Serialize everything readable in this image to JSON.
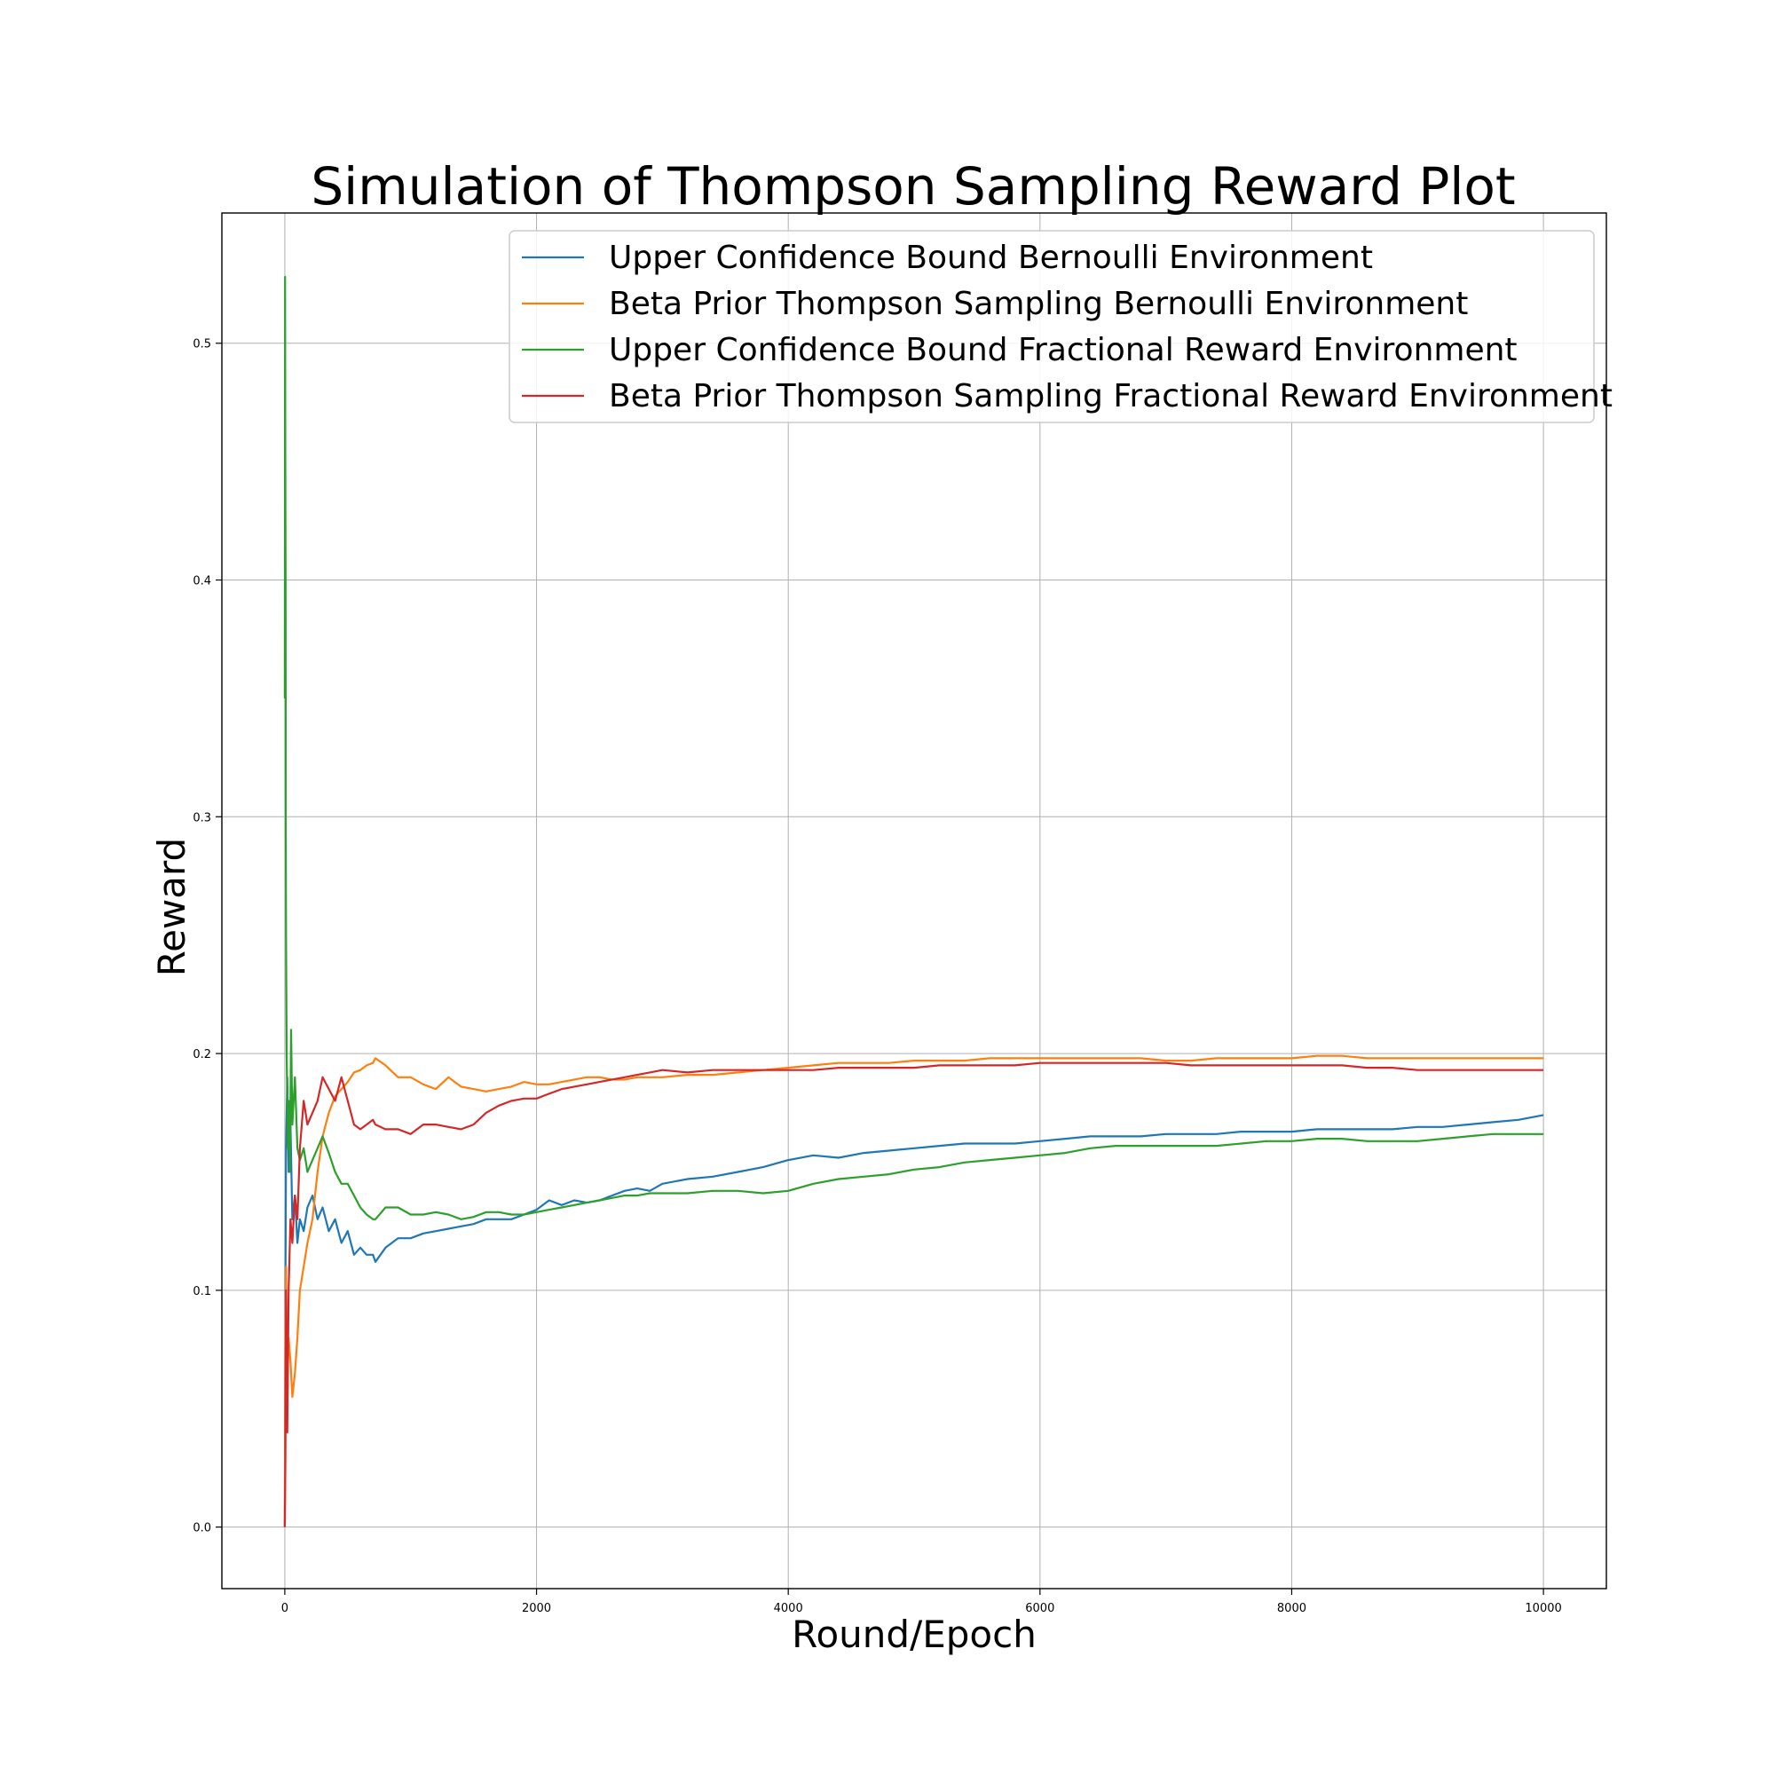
{
  "chart_data": {
    "type": "line",
    "title": "Simulation of Thompson Sampling Reward Plot",
    "xlabel": "Round/Epoch",
    "ylabel": "Reward",
    "xlim": [
      -500,
      10500
    ],
    "ylim": [
      -0.026,
      0.555
    ],
    "xticks": [
      0,
      2000,
      4000,
      6000,
      8000,
      10000
    ],
    "yticks": [
      0.0,
      0.1,
      0.2,
      0.3,
      0.4,
      0.5
    ],
    "xtick_labels": [
      "0",
      "2000",
      "4000",
      "6000",
      "8000",
      "10000"
    ],
    "ytick_labels": [
      "0.0",
      "0.1",
      "0.2",
      "0.3",
      "0.4",
      "0.5"
    ],
    "grid": true,
    "legend_position": "top-right",
    "series": [
      {
        "name": "Upper Confidence Bound Bernoulli Environment",
        "color": "#1f77b4",
        "x": [
          0,
          5,
          10,
          20,
          30,
          45,
          60,
          80,
          100,
          120,
          150,
          180,
          220,
          260,
          300,
          350,
          400,
          450,
          500,
          550,
          600,
          650,
          700,
          720,
          800,
          900,
          1000,
          1100,
          1200,
          1300,
          1400,
          1500,
          1600,
          1700,
          1800,
          1900,
          2000,
          2100,
          2200,
          2300,
          2400,
          2500,
          2600,
          2700,
          2800,
          2900,
          3000,
          3200,
          3400,
          3600,
          3800,
          4000,
          4200,
          4400,
          4600,
          4800,
          5000,
          5200,
          5400,
          5600,
          5800,
          6000,
          6200,
          6400,
          6600,
          6800,
          7000,
          7200,
          7400,
          7600,
          7800,
          8000,
          8200,
          8400,
          8600,
          8800,
          9000,
          9200,
          9400,
          9600,
          9800,
          10000
        ],
        "y": [
          0.0,
          0.1,
          0.16,
          0.19,
          0.15,
          0.17,
          0.13,
          0.14,
          0.12,
          0.13,
          0.125,
          0.135,
          0.14,
          0.13,
          0.135,
          0.125,
          0.13,
          0.12,
          0.125,
          0.115,
          0.118,
          0.115,
          0.115,
          0.112,
          0.118,
          0.122,
          0.122,
          0.124,
          0.125,
          0.126,
          0.127,
          0.128,
          0.13,
          0.13,
          0.13,
          0.132,
          0.134,
          0.138,
          0.136,
          0.138,
          0.137,
          0.138,
          0.14,
          0.142,
          0.143,
          0.142,
          0.145,
          0.147,
          0.148,
          0.15,
          0.152,
          0.155,
          0.157,
          0.156,
          0.158,
          0.159,
          0.16,
          0.161,
          0.162,
          0.162,
          0.162,
          0.163,
          0.164,
          0.165,
          0.165,
          0.165,
          0.166,
          0.166,
          0.166,
          0.167,
          0.167,
          0.167,
          0.168,
          0.168,
          0.168,
          0.168,
          0.169,
          0.169,
          0.17,
          0.171,
          0.172,
          0.174
        ]
      },
      {
        "name": "Beta Prior Thompson Sampling Bernoulli Environment",
        "color": "#ff7f0e",
        "x": [
          0,
          5,
          10,
          20,
          30,
          45,
          60,
          80,
          100,
          120,
          150,
          180,
          220,
          260,
          300,
          350,
          400,
          450,
          500,
          550,
          600,
          650,
          700,
          720,
          800,
          900,
          1000,
          1100,
          1200,
          1300,
          1400,
          1500,
          1600,
          1700,
          1800,
          1900,
          2000,
          2100,
          2200,
          2300,
          2400,
          2500,
          2600,
          2700,
          2800,
          2900,
          3000,
          3200,
          3400,
          3600,
          3800,
          4000,
          4200,
          4400,
          4600,
          4800,
          5000,
          5200,
          5400,
          5600,
          5800,
          6000,
          6200,
          6400,
          6600,
          6800,
          7000,
          7200,
          7400,
          7600,
          7800,
          8000,
          8200,
          8400,
          8600,
          8800,
          9000,
          9200,
          9400,
          9600,
          9800,
          10000
        ],
        "y": [
          0.0,
          0.08,
          0.11,
          0.06,
          0.08,
          0.07,
          0.055,
          0.065,
          0.08,
          0.1,
          0.11,
          0.12,
          0.13,
          0.15,
          0.165,
          0.175,
          0.182,
          0.185,
          0.188,
          0.192,
          0.193,
          0.195,
          0.196,
          0.198,
          0.195,
          0.19,
          0.19,
          0.187,
          0.185,
          0.19,
          0.186,
          0.185,
          0.184,
          0.185,
          0.186,
          0.188,
          0.187,
          0.187,
          0.188,
          0.189,
          0.19,
          0.19,
          0.189,
          0.189,
          0.19,
          0.19,
          0.19,
          0.191,
          0.191,
          0.192,
          0.193,
          0.194,
          0.195,
          0.196,
          0.196,
          0.196,
          0.197,
          0.197,
          0.197,
          0.198,
          0.198,
          0.198,
          0.198,
          0.198,
          0.198,
          0.198,
          0.197,
          0.197,
          0.198,
          0.198,
          0.198,
          0.198,
          0.199,
          0.199,
          0.198,
          0.198,
          0.198,
          0.198,
          0.198,
          0.198,
          0.198,
          0.198
        ]
      },
      {
        "name": "Upper Confidence Bound Fractional Reward Environment",
        "color": "#2ca02c",
        "x": [
          0,
          2,
          4,
          6,
          8,
          10,
          15,
          20,
          25,
          30,
          40,
          50,
          60,
          80,
          100,
          120,
          150,
          180,
          220,
          260,
          300,
          350,
          400,
          450,
          500,
          550,
          600,
          650,
          700,
          720,
          800,
          900,
          1000,
          1100,
          1200,
          1300,
          1400,
          1500,
          1600,
          1700,
          1800,
          1900,
          2000,
          2100,
          2200,
          2300,
          2400,
          2500,
          2600,
          2700,
          2800,
          2900,
          3000,
          3200,
          3400,
          3600,
          3800,
          4000,
          4200,
          4400,
          4600,
          4800,
          5000,
          5200,
          5400,
          5600,
          5800,
          6000,
          6200,
          6400,
          6600,
          6800,
          7000,
          7200,
          7400,
          7600,
          7800,
          8000,
          8200,
          8400,
          8600,
          8800,
          9000,
          9200,
          9400,
          9600,
          9800,
          10000
        ],
        "y": [
          0.35,
          0.528,
          0.45,
          0.4,
          0.3,
          0.25,
          0.2,
          0.18,
          0.16,
          0.18,
          0.15,
          0.21,
          0.17,
          0.19,
          0.16,
          0.155,
          0.16,
          0.15,
          0.155,
          0.16,
          0.165,
          0.158,
          0.15,
          0.145,
          0.145,
          0.14,
          0.135,
          0.132,
          0.13,
          0.13,
          0.135,
          0.135,
          0.132,
          0.132,
          0.133,
          0.132,
          0.13,
          0.131,
          0.133,
          0.133,
          0.132,
          0.132,
          0.133,
          0.134,
          0.135,
          0.136,
          0.137,
          0.138,
          0.139,
          0.14,
          0.14,
          0.141,
          0.141,
          0.141,
          0.142,
          0.142,
          0.141,
          0.142,
          0.145,
          0.147,
          0.148,
          0.149,
          0.151,
          0.152,
          0.154,
          0.155,
          0.156,
          0.157,
          0.158,
          0.16,
          0.161,
          0.161,
          0.161,
          0.161,
          0.161,
          0.162,
          0.163,
          0.163,
          0.164,
          0.164,
          0.163,
          0.163,
          0.163,
          0.164,
          0.165,
          0.166,
          0.166,
          0.166
        ]
      },
      {
        "name": "Beta Prior Thompson Sampling Fractional Reward Environment",
        "color": "#d62728",
        "x": [
          0,
          5,
          10,
          20,
          30,
          45,
          60,
          80,
          100,
          120,
          150,
          180,
          220,
          260,
          300,
          350,
          400,
          450,
          500,
          550,
          600,
          650,
          700,
          720,
          800,
          900,
          1000,
          1100,
          1200,
          1300,
          1400,
          1500,
          1600,
          1700,
          1800,
          1900,
          2000,
          2100,
          2200,
          2300,
          2400,
          2500,
          2600,
          2700,
          2800,
          2900,
          3000,
          3200,
          3400,
          3600,
          3800,
          4000,
          4200,
          4400,
          4600,
          4800,
          5000,
          5200,
          5400,
          5600,
          5800,
          6000,
          6200,
          6400,
          6600,
          6800,
          7000,
          7200,
          7400,
          7600,
          7800,
          8000,
          8200,
          8400,
          8600,
          8800,
          9000,
          9200,
          9400,
          9600,
          9800,
          10000
        ],
        "y": [
          0.0,
          0.03,
          0.1,
          0.04,
          0.1,
          0.13,
          0.12,
          0.14,
          0.13,
          0.16,
          0.18,
          0.17,
          0.175,
          0.18,
          0.19,
          0.185,
          0.18,
          0.19,
          0.18,
          0.17,
          0.168,
          0.17,
          0.172,
          0.17,
          0.168,
          0.168,
          0.166,
          0.17,
          0.17,
          0.169,
          0.168,
          0.17,
          0.175,
          0.178,
          0.18,
          0.181,
          0.181,
          0.183,
          0.185,
          0.186,
          0.187,
          0.188,
          0.189,
          0.19,
          0.191,
          0.192,
          0.193,
          0.192,
          0.193,
          0.193,
          0.193,
          0.193,
          0.193,
          0.194,
          0.194,
          0.194,
          0.194,
          0.195,
          0.195,
          0.195,
          0.195,
          0.196,
          0.196,
          0.196,
          0.196,
          0.196,
          0.196,
          0.195,
          0.195,
          0.195,
          0.195,
          0.195,
          0.195,
          0.195,
          0.194,
          0.194,
          0.193,
          0.193,
          0.193,
          0.193,
          0.193,
          0.193
        ]
      }
    ]
  }
}
